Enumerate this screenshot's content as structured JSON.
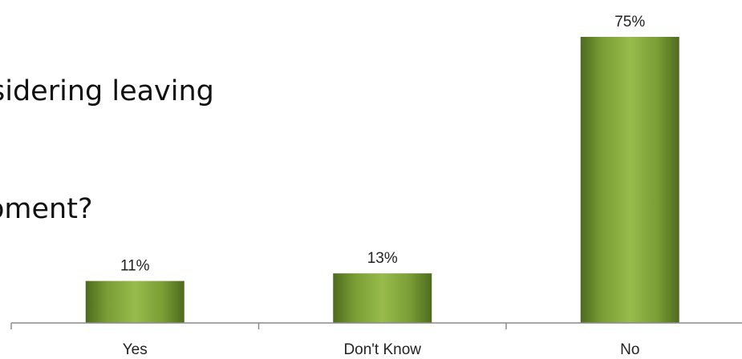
{
  "title": {
    "line1": "sidering leaving",
    "line2": "oment?"
  },
  "colors": {
    "bar_dark": "#4e6b1f",
    "bar_mid": "#7fa33a",
    "bar_light": "#98bb4c",
    "axis": "#8a8a8a"
  },
  "chart_data": {
    "type": "bar",
    "title": "sidering leaving oment?",
    "categories": [
      "Yes",
      "Don't Know",
      "No"
    ],
    "values": [
      11,
      13,
      75
    ],
    "data_labels": [
      "11%",
      "13%",
      "75%"
    ],
    "xlabel": "",
    "ylabel": "",
    "ylim": [
      0,
      100
    ],
    "grid": false,
    "legend": "none"
  }
}
